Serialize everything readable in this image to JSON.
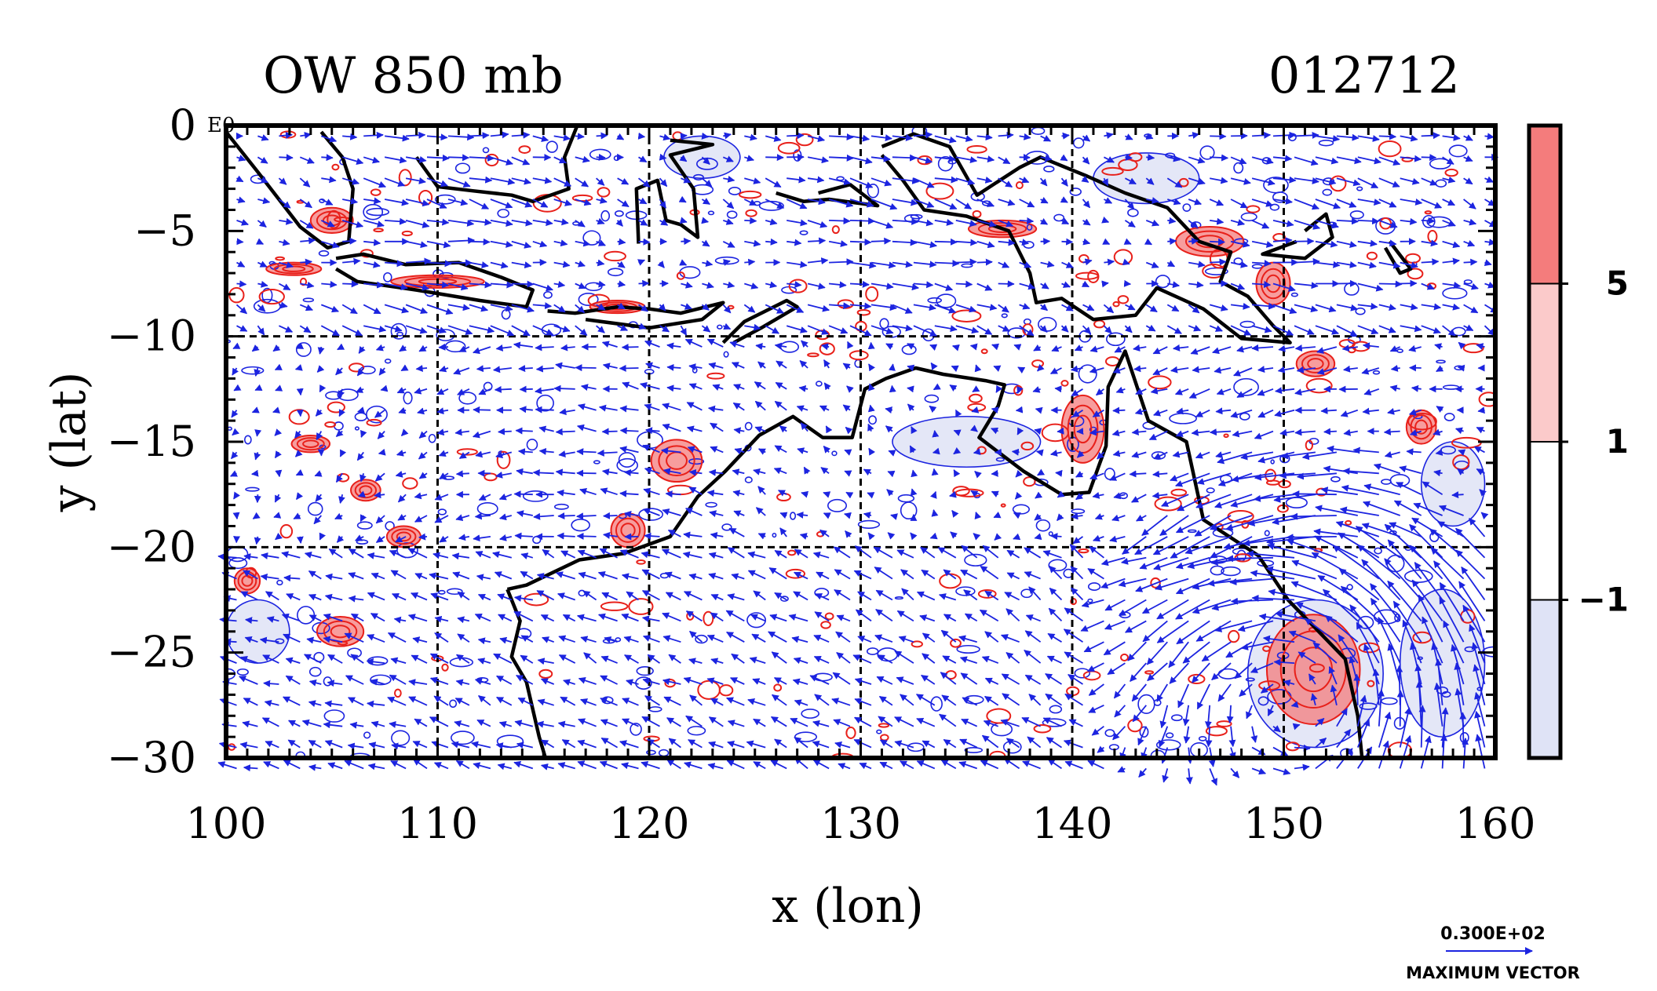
{
  "chart_data": {
    "type": "heatmap",
    "title": "OW 850 mb",
    "date_label": "012712",
    "xlabel": "x (lon)",
    "ylabel": "y (lat)",
    "xlim": [
      100,
      160
    ],
    "ylim": [
      -30,
      0
    ],
    "x_ticks": [
      "100",
      "110",
      "120",
      "130",
      "140",
      "150",
      "160"
    ],
    "y_ticks": [
      "0",
      "−5",
      "−10",
      "−15",
      "−20",
      "−25",
      "−30"
    ],
    "corner_mark": "E0",
    "grid": true,
    "colorbar": {
      "labels": [
        "5",
        "1",
        "−1"
      ],
      "colors": [
        "#f47c7c",
        "#fbcaca",
        "#ffffff",
        "#dfe3f6"
      ]
    },
    "contour_colors": {
      "positive": "#e8201a",
      "negative": "#1c24e0",
      "coast": "#000000"
    },
    "vector_color": "#1c24e0",
    "vector_key": {
      "value": "0.300E+02",
      "label": "MAXIMUM VECTOR"
    },
    "positive_features": [
      {
        "lon": 121.3,
        "lat": -15.9,
        "rx": 1.2,
        "ry": 1.0
      },
      {
        "lon": 140.5,
        "lat": -14.4,
        "rx": 1.0,
        "ry": 1.6
      },
      {
        "lon": 151.4,
        "lat": -25.8,
        "rx": 2.2,
        "ry": 2.6
      },
      {
        "lon": 105.4,
        "lat": -24.0,
        "rx": 1.1,
        "ry": 0.7
      },
      {
        "lon": 108.4,
        "lat": -19.5,
        "rx": 0.8,
        "ry": 0.5
      },
      {
        "lon": 106.6,
        "lat": -17.3,
        "rx": 0.7,
        "ry": 0.5
      },
      {
        "lon": 104.0,
        "lat": -15.1,
        "rx": 0.9,
        "ry": 0.4
      },
      {
        "lon": 156.5,
        "lat": -14.3,
        "rx": 0.7,
        "ry": 0.8
      },
      {
        "lon": 151.5,
        "lat": -11.3,
        "rx": 0.9,
        "ry": 0.6
      },
      {
        "lon": 146.5,
        "lat": -5.5,
        "rx": 1.6,
        "ry": 0.7
      },
      {
        "lon": 149.5,
        "lat": -7.5,
        "rx": 0.8,
        "ry": 1.0
      },
      {
        "lon": 136.7,
        "lat": -4.9,
        "rx": 1.6,
        "ry": 0.4
      },
      {
        "lon": 119.0,
        "lat": -19.2,
        "rx": 0.8,
        "ry": 0.8
      },
      {
        "lon": 105.0,
        "lat": -4.5,
        "rx": 1.0,
        "ry": 0.6
      },
      {
        "lon": 103.2,
        "lat": -6.8,
        "rx": 1.3,
        "ry": 0.3
      },
      {
        "lon": 101.0,
        "lat": -21.6,
        "rx": 0.6,
        "ry": 0.6
      },
      {
        "lon": 110.0,
        "lat": -7.4,
        "rx": 2.2,
        "ry": 0.3
      },
      {
        "lon": 118.5,
        "lat": -8.6,
        "rx": 1.3,
        "ry": 0.3
      }
    ],
    "negative_features": [
      {
        "lon": 101.5,
        "lat": -24.0,
        "rx": 1.5,
        "ry": 1.5
      },
      {
        "lon": 151.5,
        "lat": -26.0,
        "rx": 3.2,
        "ry": 3.5
      },
      {
        "lon": 157.5,
        "lat": -25.5,
        "rx": 2.0,
        "ry": 3.5
      },
      {
        "lon": 135.0,
        "lat": -15.0,
        "rx": 3.5,
        "ry": 1.2
      },
      {
        "lon": 122.5,
        "lat": -1.5,
        "rx": 1.8,
        "ry": 1.0
      },
      {
        "lon": 143.5,
        "lat": -2.5,
        "rx": 2.5,
        "ry": 1.2
      },
      {
        "lon": 158.0,
        "lat": -17.0,
        "rx": 1.5,
        "ry": 2.0
      }
    ]
  }
}
